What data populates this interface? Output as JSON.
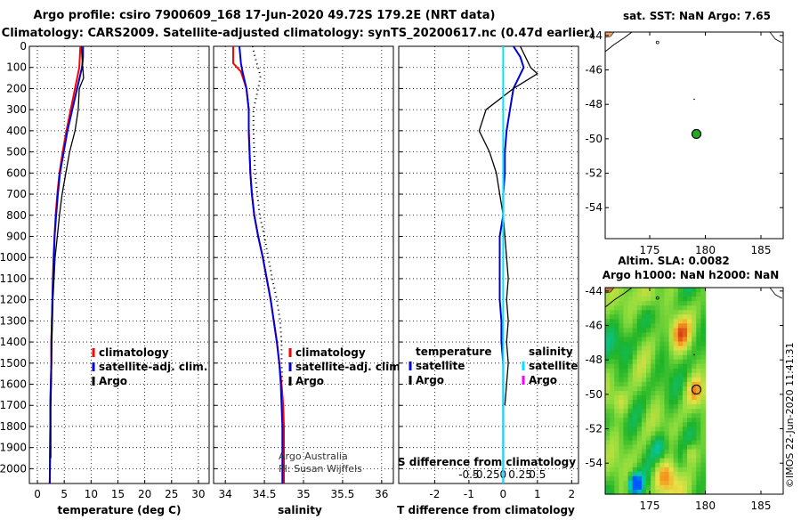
{
  "header": {
    "line1": "Argo profile: csiro 7900609_168 17-Jun-2020 49.72S 179.2E (NRT data)",
    "line2": "Climatology: CARS2009. Satellite-adjusted climatology: synTS_20200617.nc (0.47d earlier)"
  },
  "colors": {
    "climatology": "#ff0000",
    "satellite": "#0000dd",
    "argo": "#000000",
    "satellite_s": "#00e5ff",
    "argo_s": "#ff00ff"
  },
  "depth_ticks": [
    "0",
    "100",
    "200",
    "300",
    "400",
    "500",
    "600",
    "700",
    "800",
    "900",
    "1000",
    "1100",
    "1200",
    "1300",
    "1400",
    "1500",
    "1600",
    "1700",
    "1800",
    "1900",
    "2000"
  ],
  "chart_data": [
    {
      "type": "line",
      "name": "temperature",
      "xlabel": "temperature (deg C)",
      "ylabel": "depth",
      "xlim": [
        -1.5,
        32
      ],
      "ylim": [
        2070,
        0
      ],
      "xticks": [
        "0",
        "5",
        "10",
        "15",
        "20",
        "25",
        "30"
      ],
      "series": [
        {
          "name": "climatology",
          "key": "climatology",
          "x": [
            8.0,
            7.9,
            7.8,
            7.0,
            6.2,
            5.4,
            4.7,
            4.1,
            3.7,
            3.4,
            3.2,
            3.0,
            2.9,
            2.8,
            2.7,
            2.6,
            2.6,
            2.5,
            2.4,
            2.4,
            2.3
          ],
          "y": [
            0,
            50,
            100,
            200,
            300,
            400,
            500,
            600,
            700,
            800,
            900,
            1000,
            1100,
            1200,
            1300,
            1400,
            1500,
            1600,
            1700,
            1800,
            2070
          ]
        },
        {
          "name": "satellite-adj. clim.",
          "key": "satellite",
          "x": [
            8.5,
            8.5,
            8.3,
            7.4,
            6.5,
            5.6,
            4.9,
            4.2,
            3.8,
            3.5,
            3.2,
            3.1,
            2.9,
            2.8,
            2.7,
            2.6,
            2.6,
            2.5,
            2.4,
            2.4,
            2.3
          ],
          "y": [
            0,
            50,
            100,
            200,
            300,
            400,
            500,
            600,
            700,
            800,
            900,
            1000,
            1100,
            1200,
            1300,
            1400,
            1500,
            1600,
            1700,
            1800,
            2070
          ]
        },
        {
          "name": "Argo",
          "key": "argo",
          "x": [
            8.2,
            8.3,
            8.6,
            7.8,
            7.6,
            7.0,
            6.0,
            5.3,
            4.6,
            4.1,
            3.7,
            3.3,
            3.1,
            2.9,
            2.8,
            2.7,
            2.6,
            2.6,
            2.5,
            2.5,
            2.5
          ],
          "y": [
            0,
            50,
            150,
            200,
            300,
            400,
            500,
            600,
            700,
            800,
            900,
            1000,
            1100,
            1200,
            1300,
            1400,
            1500,
            1600,
            1700,
            1800,
            1950
          ]
        }
      ],
      "legend": [
        "climatology",
        "satellite-adj. clim.",
        "Argo"
      ]
    },
    {
      "type": "line",
      "name": "salinity",
      "xlabel": "salinity",
      "xlim": [
        33.85,
        36.15
      ],
      "ylim": [
        2070,
        0
      ],
      "xticks": [
        "34",
        "34.5",
        "35",
        "35.5",
        "36"
      ],
      "series": [
        {
          "name": "climatology",
          "key": "climatology",
          "x": [
            34.1,
            34.1,
            34.2,
            34.27,
            34.3,
            34.3,
            34.31,
            34.32,
            34.34,
            34.37,
            34.42,
            34.48,
            34.53,
            34.58,
            34.62,
            34.66,
            34.69,
            34.72,
            34.74,
            34.75,
            34.75
          ],
          "y": [
            0,
            80,
            120,
            200,
            300,
            400,
            500,
            600,
            700,
            800,
            900,
            1000,
            1100,
            1200,
            1300,
            1400,
            1500,
            1600,
            1700,
            1800,
            2070
          ]
        },
        {
          "name": "satellite-adj. clim.",
          "key": "satellite",
          "x": [
            34.18,
            34.2,
            34.22,
            34.27,
            34.3,
            34.3,
            34.31,
            34.32,
            34.34,
            34.37,
            34.42,
            34.48,
            34.53,
            34.58,
            34.62,
            34.66,
            34.69,
            34.71,
            34.72,
            34.73,
            34.73
          ],
          "y": [
            0,
            80,
            120,
            200,
            300,
            400,
            500,
            600,
            700,
            800,
            900,
            1000,
            1100,
            1200,
            1300,
            1400,
            1500,
            1600,
            1700,
            1800,
            2070
          ]
        },
        {
          "name": "Argo",
          "key": "argo",
          "x": [
            34.35,
            34.38,
            34.45,
            34.42,
            34.36,
            34.36,
            34.37,
            34.38,
            34.41,
            34.44,
            34.5,
            34.55,
            34.6,
            34.66,
            34.7,
            34.72,
            34.72,
            34.73
          ],
          "y": [
            0,
            50,
            140,
            200,
            300,
            400,
            500,
            600,
            700,
            800,
            900,
            1000,
            1100,
            1200,
            1300,
            1400,
            1500,
            1600
          ]
        }
      ],
      "legend": [
        "climatology",
        "satellite-adj. clim.",
        "Argo"
      ],
      "credit1": "Argo Australia",
      "credit2": "PI: Susan Wijffels"
    },
    {
      "type": "line",
      "name": "difference",
      "xlabel": "T difference from climatology",
      "title_bottom": "S difference from climatology",
      "xlim": [
        -3.05,
        2.2
      ],
      "ylim": [
        2070,
        0
      ],
      "xticks": [
        "-2",
        "-1",
        "0",
        "1",
        "2"
      ],
      "sticks": [
        "-0.5",
        "-0.25",
        "0",
        "0.25",
        "0.5"
      ],
      "series": [
        {
          "name": "T satellite",
          "key": "satellite",
          "x": [
            0.3,
            0.5,
            0.6,
            0.3,
            0.2,
            0.1,
            0.05,
            0.05,
            0,
            0,
            -0.1,
            -0.1,
            -0.1,
            -0.1,
            -0.05,
            -0.05,
            0,
            0,
            0,
            0,
            0
          ],
          "y": [
            0,
            50,
            100,
            200,
            300,
            400,
            500,
            600,
            700,
            800,
            900,
            1000,
            1100,
            1200,
            1300,
            1400,
            1500,
            1600,
            1700,
            1800,
            2070
          ]
        },
        {
          "name": "T Argo",
          "key": "argo",
          "x": [
            0.5,
            0.8,
            1.0,
            0.3,
            -0.5,
            -0.7,
            -0.4,
            -0.2,
            -0.1,
            0,
            0.05,
            0.1,
            0.15,
            0.1,
            0.15,
            0.1,
            0.15,
            0.1,
            0.05
          ],
          "y": [
            0,
            100,
            130,
            200,
            300,
            400,
            500,
            600,
            700,
            800,
            900,
            1000,
            1100,
            1200,
            1300,
            1400,
            1500,
            1600,
            1700
          ]
        },
        {
          "name": "S satellite",
          "key": "satellite_s",
          "x": [
            0,
            0,
            0,
            0,
            0,
            0,
            0,
            0,
            0,
            0,
            0,
            0
          ],
          "y": [
            0,
            100,
            300,
            500,
            700,
            900,
            1100,
            1300,
            1500,
            1700,
            1900,
            2070
          ]
        }
      ],
      "legend_left_title": "temperature",
      "legend_right_title": "salinity",
      "legend_left": [
        "satellite",
        "Argo"
      ],
      "legend_right": [
        "satellite",
        "Argo"
      ]
    },
    {
      "type": "map",
      "name": "sst-map",
      "title": "sat. SST: NaN Argo: 7.65",
      "lon_ticks": [
        "175",
        "180",
        "185"
      ],
      "lat_ticks": [
        "-44",
        "-46",
        "-48",
        "-50",
        "-52",
        "-54"
      ],
      "lon_range": [
        171,
        187
      ],
      "lat_range": [
        -55.8,
        -43.8
      ],
      "marker": {
        "lon": 179.2,
        "lat": -49.72
      }
    },
    {
      "type": "heatmap",
      "name": "sla-map",
      "title1": "Altim. SLA: 0.0082",
      "title2": "Argo h1000: NaN h2000: NaN",
      "lon_ticks": [
        "175",
        "180",
        "185"
      ],
      "lat_ticks": [
        "-44",
        "-46",
        "-48",
        "-50",
        "-52",
        "-54"
      ],
      "lon_range": [
        171,
        187
      ],
      "lat_range": [
        -55.8,
        -43.8
      ],
      "data_lon_max": 180,
      "marker": {
        "lon": 179.2,
        "lat": -49.72
      }
    }
  ],
  "footer": {
    "stamp": "©IMOS 22-Jun-2020 11:41:31"
  }
}
